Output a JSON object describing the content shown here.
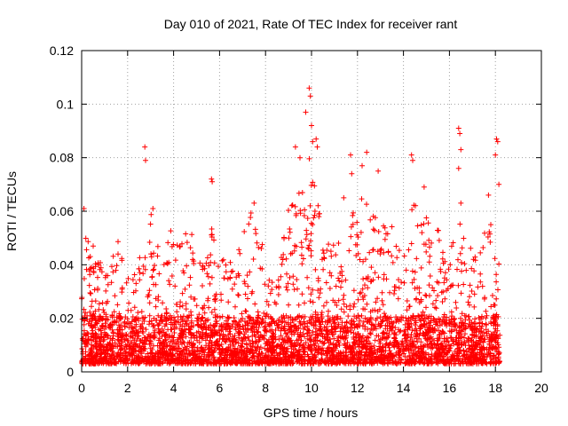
{
  "chart_data": {
    "type": "scatter",
    "title": "Day 010 of 2021, Rate Of TEC Index for receiver rant",
    "xlabel": "GPS time / hours",
    "ylabel": "ROTI / TECUs",
    "xlim": [
      0,
      20
    ],
    "ylim": [
      0,
      0.12
    ],
    "x_ticks": [
      "0",
      "2",
      "4",
      "6",
      "8",
      "10",
      "12",
      "14",
      "16",
      "18",
      "20"
    ],
    "y_ticks": [
      "0",
      "0.02",
      "0.04",
      "0.06",
      "0.08",
      "0.1",
      "0.12"
    ],
    "grid": true,
    "legend": "none",
    "marker": "plus",
    "color": "#ff0000",
    "time_range": [
      0,
      18.2
    ],
    "envelope": [
      [
        0.0,
        0.05
      ],
      [
        0.15,
        0.062
      ],
      [
        0.3,
        0.05
      ],
      [
        0.6,
        0.046
      ],
      [
        0.9,
        0.04
      ],
      [
        1.2,
        0.036
      ],
      [
        1.5,
        0.053
      ],
      [
        1.8,
        0.04
      ],
      [
        2.1,
        0.034
      ],
      [
        2.4,
        0.038
      ],
      [
        2.7,
        0.052
      ],
      [
        3.0,
        0.06
      ],
      [
        3.3,
        0.048
      ],
      [
        3.6,
        0.05
      ],
      [
        3.9,
        0.056
      ],
      [
        4.2,
        0.05
      ],
      [
        4.5,
        0.052
      ],
      [
        4.8,
        0.056
      ],
      [
        5.1,
        0.042
      ],
      [
        5.4,
        0.046
      ],
      [
        5.7,
        0.055
      ],
      [
        6.0,
        0.04
      ],
      [
        6.3,
        0.046
      ],
      [
        6.6,
        0.04
      ],
      [
        6.9,
        0.05
      ],
      [
        7.2,
        0.055
      ],
      [
        7.5,
        0.063
      ],
      [
        7.8,
        0.05
      ],
      [
        8.1,
        0.038
      ],
      [
        8.4,
        0.032
      ],
      [
        8.7,
        0.052
      ],
      [
        9.0,
        0.066
      ],
      [
        9.3,
        0.072
      ],
      [
        9.6,
        0.078
      ],
      [
        9.9,
        0.088
      ],
      [
        10.2,
        0.07
      ],
      [
        10.5,
        0.055
      ],
      [
        10.8,
        0.052
      ],
      [
        11.1,
        0.048
      ],
      [
        11.4,
        0.055
      ],
      [
        11.7,
        0.06
      ],
      [
        12.0,
        0.066
      ],
      [
        12.3,
        0.068
      ],
      [
        12.6,
        0.06
      ],
      [
        12.9,
        0.056
      ],
      [
        13.2,
        0.055
      ],
      [
        13.5,
        0.058
      ],
      [
        13.8,
        0.05
      ],
      [
        14.1,
        0.054
      ],
      [
        14.4,
        0.062
      ],
      [
        14.7,
        0.068
      ],
      [
        15.0,
        0.06
      ],
      [
        15.3,
        0.052
      ],
      [
        15.6,
        0.055
      ],
      [
        15.9,
        0.045
      ],
      [
        16.2,
        0.05
      ],
      [
        16.5,
        0.058
      ],
      [
        16.8,
        0.05
      ],
      [
        17.1,
        0.044
      ],
      [
        17.4,
        0.05
      ],
      [
        17.7,
        0.058
      ],
      [
        18.0,
        0.055
      ],
      [
        18.2,
        0.04
      ]
    ],
    "outliers": [
      {
        "x": 0.1,
        "y": 0.061
      },
      {
        "x": 2.75,
        "y": 0.084
      },
      {
        "x": 2.78,
        "y": 0.079
      },
      {
        "x": 3.1,
        "y": 0.061
      },
      {
        "x": 5.65,
        "y": 0.072
      },
      {
        "x": 5.68,
        "y": 0.071
      },
      {
        "x": 7.5,
        "y": 0.063
      },
      {
        "x": 9.3,
        "y": 0.084
      },
      {
        "x": 9.5,
        "y": 0.08
      },
      {
        "x": 9.75,
        "y": 0.097
      },
      {
        "x": 9.9,
        "y": 0.106
      },
      {
        "x": 9.95,
        "y": 0.103
      },
      {
        "x": 10.0,
        "y": 0.092
      },
      {
        "x": 10.05,
        "y": 0.086
      },
      {
        "x": 10.2,
        "y": 0.087
      },
      {
        "x": 10.25,
        "y": 0.084
      },
      {
        "x": 11.7,
        "y": 0.081
      },
      {
        "x": 11.75,
        "y": 0.074
      },
      {
        "x": 12.4,
        "y": 0.082
      },
      {
        "x": 12.2,
        "y": 0.077
      },
      {
        "x": 12.9,
        "y": 0.075
      },
      {
        "x": 14.35,
        "y": 0.081
      },
      {
        "x": 14.4,
        "y": 0.079
      },
      {
        "x": 14.9,
        "y": 0.069
      },
      {
        "x": 16.4,
        "y": 0.091
      },
      {
        "x": 16.45,
        "y": 0.089
      },
      {
        "x": 16.5,
        "y": 0.083
      },
      {
        "x": 16.4,
        "y": 0.076
      },
      {
        "x": 16.5,
        "y": 0.063
      },
      {
        "x": 17.7,
        "y": 0.066
      },
      {
        "x": 18.05,
        "y": 0.087
      },
      {
        "x": 18.1,
        "y": 0.086
      },
      {
        "x": 18.0,
        "y": 0.081
      },
      {
        "x": 18.15,
        "y": 0.07
      },
      {
        "x": 17.8,
        "y": 0.055
      },
      {
        "x": 11.4,
        "y": 0.065
      }
    ]
  }
}
